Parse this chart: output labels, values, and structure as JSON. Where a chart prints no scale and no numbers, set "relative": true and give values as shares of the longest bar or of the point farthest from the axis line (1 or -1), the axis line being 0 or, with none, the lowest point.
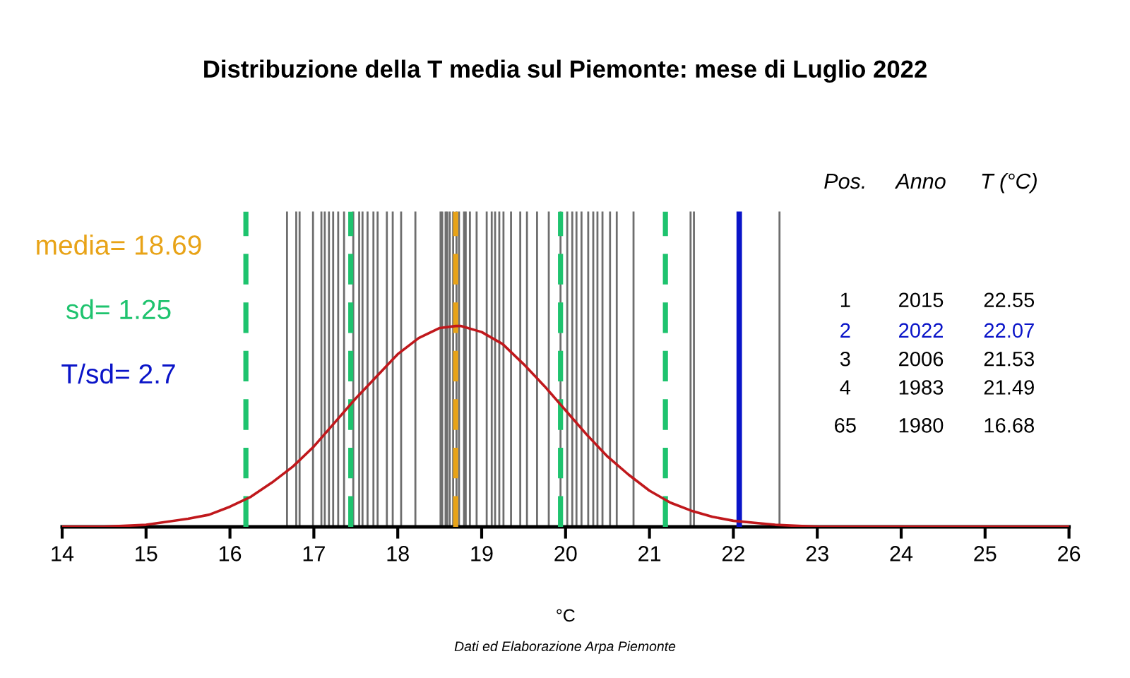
{
  "chart_data": {
    "type": "line",
    "title": "Distribuzione della T media sul Piemonte: mese di Luglio 2022",
    "xlabel": "°C",
    "relative": true,
    "xlim": [
      14,
      26
    ],
    "xticks": [
      14,
      15,
      16,
      17,
      18,
      19,
      20,
      21,
      22,
      23,
      24,
      25,
      26
    ],
    "grid": false,
    "legend": false,
    "series": [
      {
        "color": "#c0181c",
        "x": [
          14,
          14.5,
          15,
          15.5,
          15.75,
          16,
          16.25,
          16.5,
          16.75,
          17,
          17.25,
          17.5,
          17.75,
          18,
          18.25,
          18.5,
          18.69,
          18.75,
          19,
          19.25,
          19.5,
          19.75,
          20,
          20.25,
          20.5,
          20.75,
          21,
          21.25,
          21.5,
          21.75,
          22,
          22.25,
          22.5,
          23,
          24,
          25,
          26
        ],
        "values": [
          0,
          0,
          0.01,
          0.04,
          0.06,
          0.1,
          0.15,
          0.22,
          0.3,
          0.4,
          0.52,
          0.64,
          0.75,
          0.86,
          0.94,
          0.99,
          1,
          1,
          0.97,
          0.91,
          0.81,
          0.7,
          0.58,
          0.46,
          0.35,
          0.26,
          0.18,
          0.12,
          0.08,
          0.05,
          0.03,
          0.02,
          0.01,
          0,
          0,
          0,
          0
        ]
      }
    ],
    "ref_lines": [
      {
        "axis": "x",
        "value": 22.07,
        "color": "#0a14c8",
        "line_style": "solid"
      },
      {
        "axis": "x",
        "value": 18.69,
        "color": "#e8a317",
        "line_style": "dashed"
      },
      {
        "axis": "x",
        "value": 16.19,
        "color": "#1ec36e",
        "line_style": "dashed"
      },
      {
        "axis": "x",
        "value": 17.44,
        "color": "#1ec36e",
        "line_style": "dashed"
      },
      {
        "axis": "x",
        "value": 19.94,
        "color": "#1ec36e",
        "line_style": "dashed"
      },
      {
        "axis": "x",
        "value": 21.19,
        "color": "#1ec36e",
        "line_style": "dashed"
      },
      {
        "axis": "x",
        "value": 16.68,
        "color": "#6e6e6e",
        "line_style": "solid"
      },
      {
        "axis": "x",
        "value": 16.79,
        "color": "#6e6e6e",
        "line_style": "solid"
      },
      {
        "axis": "x",
        "value": 16.83,
        "color": "#6e6e6e",
        "line_style": "solid"
      },
      {
        "axis": "x",
        "value": 16.99,
        "color": "#6e6e6e",
        "line_style": "solid"
      },
      {
        "axis": "x",
        "value": 17.09,
        "color": "#6e6e6e",
        "line_style": "solid"
      },
      {
        "axis": "x",
        "value": 17.13,
        "color": "#6e6e6e",
        "line_style": "solid"
      },
      {
        "axis": "x",
        "value": 17.18,
        "color": "#6e6e6e",
        "line_style": "solid"
      },
      {
        "axis": "x",
        "value": 17.23,
        "color": "#6e6e6e",
        "line_style": "solid"
      },
      {
        "axis": "x",
        "value": 17.29,
        "color": "#6e6e6e",
        "line_style": "solid"
      },
      {
        "axis": "x",
        "value": 17.36,
        "color": "#6e6e6e",
        "line_style": "solid"
      },
      {
        "axis": "x",
        "value": 17.47,
        "color": "#6e6e6e",
        "line_style": "solid"
      },
      {
        "axis": "x",
        "value": 17.54,
        "color": "#6e6e6e",
        "line_style": "solid"
      },
      {
        "axis": "x",
        "value": 17.58,
        "color": "#6e6e6e",
        "line_style": "solid"
      },
      {
        "axis": "x",
        "value": 17.64,
        "color": "#6e6e6e",
        "line_style": "solid"
      },
      {
        "axis": "x",
        "value": 17.71,
        "color": "#6e6e6e",
        "line_style": "solid"
      },
      {
        "axis": "x",
        "value": 17.76,
        "color": "#6e6e6e",
        "line_style": "solid"
      },
      {
        "axis": "x",
        "value": 17.87,
        "color": "#6e6e6e",
        "line_style": "solid"
      },
      {
        "axis": "x",
        "value": 17.94,
        "color": "#6e6e6e",
        "line_style": "solid"
      },
      {
        "axis": "x",
        "value": 18.04,
        "color": "#6e6e6e",
        "line_style": "solid"
      },
      {
        "axis": "x",
        "value": 18.21,
        "color": "#6e6e6e",
        "line_style": "solid"
      },
      {
        "axis": "x",
        "value": 18.51,
        "color": "#6e6e6e",
        "line_style": "solid"
      },
      {
        "axis": "x",
        "value": 18.53,
        "color": "#6e6e6e",
        "line_style": "solid"
      },
      {
        "axis": "x",
        "value": 18.57,
        "color": "#6e6e6e",
        "line_style": "solid"
      },
      {
        "axis": "x",
        "value": 18.59,
        "color": "#6e6e6e",
        "line_style": "solid"
      },
      {
        "axis": "x",
        "value": 18.62,
        "color": "#6e6e6e",
        "line_style": "solid"
      },
      {
        "axis": "x",
        "value": 18.66,
        "color": "#6e6e6e",
        "line_style": "solid"
      },
      {
        "axis": "x",
        "value": 18.7,
        "color": "#6e6e6e",
        "line_style": "solid"
      },
      {
        "axis": "x",
        "value": 18.73,
        "color": "#6e6e6e",
        "line_style": "solid"
      },
      {
        "axis": "x",
        "value": 18.79,
        "color": "#6e6e6e",
        "line_style": "solid"
      },
      {
        "axis": "x",
        "value": 18.81,
        "color": "#6e6e6e",
        "line_style": "solid"
      },
      {
        "axis": "x",
        "value": 18.86,
        "color": "#6e6e6e",
        "line_style": "solid"
      },
      {
        "axis": "x",
        "value": 18.94,
        "color": "#6e6e6e",
        "line_style": "solid"
      },
      {
        "axis": "x",
        "value": 19.06,
        "color": "#6e6e6e",
        "line_style": "solid"
      },
      {
        "axis": "x",
        "value": 19.12,
        "color": "#6e6e6e",
        "line_style": "solid"
      },
      {
        "axis": "x",
        "value": 19.16,
        "color": "#6e6e6e",
        "line_style": "solid"
      },
      {
        "axis": "x",
        "value": 19.21,
        "color": "#6e6e6e",
        "line_style": "solid"
      },
      {
        "axis": "x",
        "value": 19.26,
        "color": "#6e6e6e",
        "line_style": "solid"
      },
      {
        "axis": "x",
        "value": 19.35,
        "color": "#6e6e6e",
        "line_style": "solid"
      },
      {
        "axis": "x",
        "value": 19.46,
        "color": "#6e6e6e",
        "line_style": "solid"
      },
      {
        "axis": "x",
        "value": 19.54,
        "color": "#6e6e6e",
        "line_style": "solid"
      },
      {
        "axis": "x",
        "value": 19.66,
        "color": "#6e6e6e",
        "line_style": "solid"
      },
      {
        "axis": "x",
        "value": 19.8,
        "color": "#6e6e6e",
        "line_style": "solid"
      },
      {
        "axis": "x",
        "value": 19.94,
        "color": "#6e6e6e",
        "line_style": "solid"
      },
      {
        "axis": "x",
        "value": 20.02,
        "color": "#6e6e6e",
        "line_style": "solid"
      },
      {
        "axis": "x",
        "value": 20.08,
        "color": "#6e6e6e",
        "line_style": "solid"
      },
      {
        "axis": "x",
        "value": 20.13,
        "color": "#6e6e6e",
        "line_style": "solid"
      },
      {
        "axis": "x",
        "value": 20.19,
        "color": "#6e6e6e",
        "line_style": "solid"
      },
      {
        "axis": "x",
        "value": 20.27,
        "color": "#6e6e6e",
        "line_style": "solid"
      },
      {
        "axis": "x",
        "value": 20.33,
        "color": "#6e6e6e",
        "line_style": "solid"
      },
      {
        "axis": "x",
        "value": 20.38,
        "color": "#6e6e6e",
        "line_style": "solid"
      },
      {
        "axis": "x",
        "value": 20.44,
        "color": "#6e6e6e",
        "line_style": "solid"
      },
      {
        "axis": "x",
        "value": 20.53,
        "color": "#6e6e6e",
        "line_style": "solid"
      },
      {
        "axis": "x",
        "value": 20.61,
        "color": "#6e6e6e",
        "line_style": "solid"
      },
      {
        "axis": "x",
        "value": 20.81,
        "color": "#6e6e6e",
        "line_style": "solid"
      },
      {
        "axis": "x",
        "value": 21.49,
        "color": "#6e6e6e",
        "line_style": "solid"
      },
      {
        "axis": "x",
        "value": 21.53,
        "color": "#6e6e6e",
        "line_style": "solid"
      },
      {
        "axis": "x",
        "value": 22.55,
        "color": "#6e6e6e",
        "line_style": "solid"
      }
    ],
    "annotations": [
      "media= 18.69",
      "sd= 1.25",
      "T/sd= 2.7",
      "Pos.",
      "Anno",
      "T (°C)",
      "1",
      "2015",
      "22.55",
      "2",
      "2022",
      "22.07",
      "3",
      "2006",
      "21.53",
      "4",
      "1983",
      "21.49",
      "65",
      "1980",
      "16.68",
      "Dati ed Elaborazione Arpa Piemonte"
    ]
  }
}
